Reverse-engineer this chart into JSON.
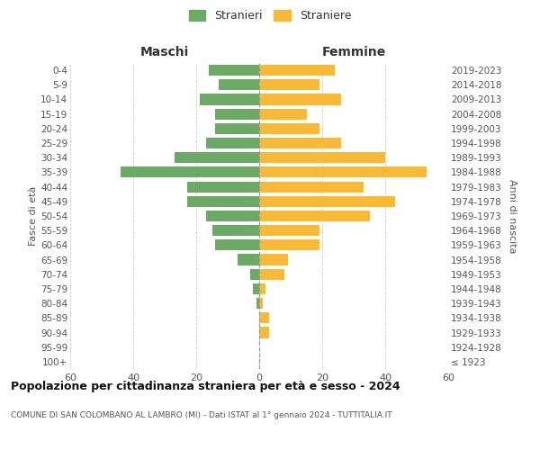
{
  "age_groups": [
    "100+",
    "95-99",
    "90-94",
    "85-89",
    "80-84",
    "75-79",
    "70-74",
    "65-69",
    "60-64",
    "55-59",
    "50-54",
    "45-49",
    "40-44",
    "35-39",
    "30-34",
    "25-29",
    "20-24",
    "15-19",
    "10-14",
    "5-9",
    "0-4"
  ],
  "birth_years": [
    "≤ 1923",
    "1924-1928",
    "1929-1933",
    "1934-1938",
    "1939-1943",
    "1944-1948",
    "1949-1953",
    "1954-1958",
    "1959-1963",
    "1964-1968",
    "1969-1973",
    "1974-1978",
    "1979-1983",
    "1984-1988",
    "1989-1993",
    "1994-1998",
    "1999-2003",
    "2004-2008",
    "2009-2013",
    "2014-2018",
    "2019-2023"
  ],
  "males": [
    0,
    0,
    0,
    0,
    1,
    2,
    3,
    7,
    14,
    15,
    17,
    23,
    23,
    44,
    27,
    17,
    14,
    14,
    19,
    13,
    16
  ],
  "females": [
    0,
    0,
    3,
    3,
    1,
    2,
    8,
    9,
    19,
    19,
    35,
    43,
    33,
    53,
    40,
    26,
    19,
    15,
    26,
    19,
    24
  ],
  "male_color": "#6aaa64",
  "female_color": "#f9b934",
  "background_color": "#ffffff",
  "grid_color": "#cccccc",
  "title": "Popolazione per cittadinanza straniera per età e sesso - 2024",
  "subtitle": "COMUNE DI SAN COLOMBANO AL LAMBRO (MI) - Dati ISTAT al 1° gennaio 2024 - TUTTITALIA.IT",
  "xlabel_left": "Maschi",
  "xlabel_right": "Femmine",
  "ylabel_left": "Fasce di età",
  "ylabel_right": "Anni di nascita",
  "legend_male": "Stranieri",
  "legend_female": "Straniere",
  "xlim": 60,
  "xtick_vals": [
    -60,
    -40,
    -20,
    0,
    20,
    40,
    60
  ],
  "xtick_labels": [
    "60",
    "40",
    "20",
    "0",
    "20",
    "40",
    "60"
  ]
}
